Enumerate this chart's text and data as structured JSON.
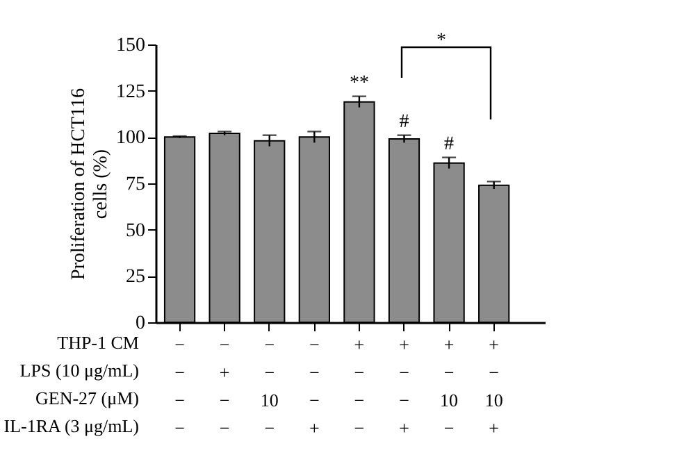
{
  "chart_data": {
    "type": "bar",
    "ylabel": "Proliferation of HCT116\ncells (%)",
    "categories": [
      "−\n−\n−\n−",
      "−\n+\n−\n−",
      "−\n−\n10\n−",
      "−\n−\n−\n+",
      "+\n−\n−\n−",
      "+\n−\n−\n+",
      "+\n−\n10\n−",
      "+\n−\n10\n+"
    ],
    "values": [
      100,
      102,
      98,
      100,
      119,
      99,
      86,
      74
    ],
    "errors": [
      0.5,
      1,
      3,
      3,
      3,
      2,
      3,
      2
    ],
    "color": "#8c8c8c",
    "ylim": [
      0,
      150
    ],
    "yticks": [
      0,
      25,
      50,
      75,
      100,
      125,
      150
    ],
    "annotations": [
      {
        "text": "**",
        "x": "+\n−\n−\n−",
        "y": 124
      },
      {
        "text": "#",
        "x": "+\n−\n−\n+",
        "y": 103
      },
      {
        "text": "#",
        "x": "+\n−\n10\n−",
        "y": 91
      },
      "*",
      "THP-1 CM",
      "LPS (10 μg/mL)",
      "GEN-27 (μM)",
      "IL-1RA (3 μg/mL)"
    ]
  }
}
